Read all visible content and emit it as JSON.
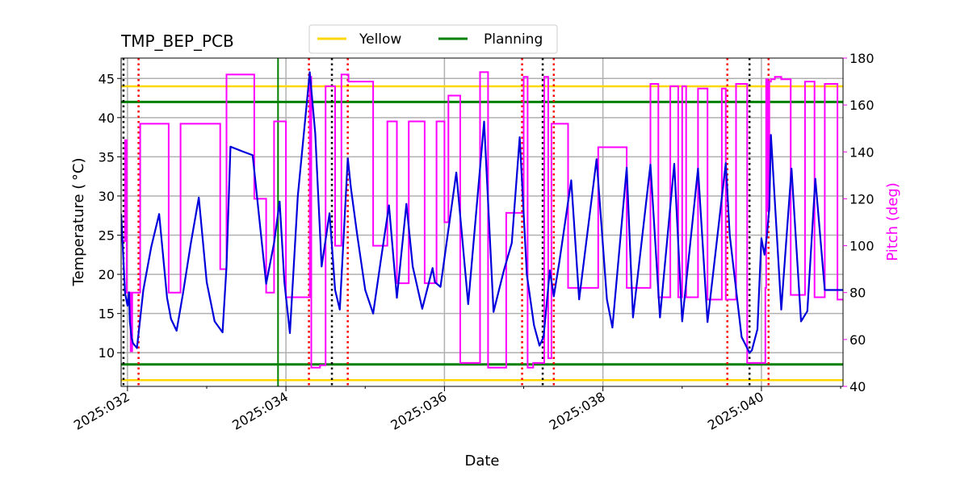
{
  "chart_data": {
    "type": "line",
    "title": "TMP_BEP_PCB",
    "xlabel": "Date",
    "ylabel": "Temperature ($^\\circ$C)",
    "ylabel_display": "Temperature ( °C)",
    "y2label": "Pitch (deg)",
    "xlim": [
      31.92,
      41.03
    ],
    "ylim": [
      5.7,
      47.6
    ],
    "y2lim": [
      40,
      180
    ],
    "x_ticks": [
      {
        "value": 32,
        "label": "2025:032"
      },
      {
        "value": 34,
        "label": "2025:034"
      },
      {
        "value": 36,
        "label": "2025:036"
      },
      {
        "value": 38,
        "label": "2025:038"
      },
      {
        "value": 40,
        "label": "2025:040"
      }
    ],
    "y_ticks": [
      10,
      15,
      20,
      25,
      30,
      35,
      40,
      45
    ],
    "y2_ticks": [
      40,
      60,
      80,
      100,
      120,
      140,
      160,
      180
    ],
    "grid": true,
    "limits": {
      "yellow": {
        "name": "Yellow",
        "values": [
          6.5,
          44.0
        ],
        "color": "#ffd700"
      },
      "planning": {
        "name": "Planning",
        "values": [
          8.5,
          42.0
        ],
        "color": "#008000"
      }
    },
    "planning_vline_x": 33.9,
    "black_dotted_x": [
      31.95,
      34.58,
      37.24,
      39.85
    ],
    "red_dotted_x": [
      32.14,
      34.29,
      34.78,
      36.98,
      37.38,
      39.57,
      40.09
    ],
    "series": [
      {
        "name": "TMP_BEP_PCB",
        "axis": "left",
        "color": "#0000dd",
        "x": [
          31.92,
          31.97,
          32.0,
          32.02,
          32.03,
          32.05,
          32.07,
          32.12,
          32.2,
          32.3,
          32.4,
          32.5,
          32.55,
          32.62,
          32.7,
          32.8,
          32.9,
          33.0,
          33.1,
          33.2,
          33.25,
          33.3,
          33.45,
          33.58,
          33.75,
          33.85,
          33.92,
          33.98,
          34.05,
          34.15,
          34.3,
          34.37,
          34.45,
          34.55,
          34.62,
          34.68,
          34.78,
          34.82,
          34.9,
          35.0,
          35.1,
          35.2,
          35.3,
          35.4,
          35.52,
          35.6,
          35.72,
          35.85,
          35.88,
          35.95,
          36.15,
          36.3,
          36.5,
          36.62,
          36.75,
          36.85,
          36.95,
          37.04,
          37.13,
          37.2,
          37.25,
          37.33,
          37.38,
          37.45,
          37.6,
          37.7,
          37.92,
          38.05,
          38.12,
          38.3,
          38.38,
          38.6,
          38.72,
          38.9,
          39.0,
          39.2,
          39.32,
          39.55,
          39.6,
          39.75,
          39.85,
          39.88,
          39.95,
          40.0,
          40.04,
          40.07,
          40.1,
          40.12,
          40.25,
          40.38,
          40.5,
          40.58,
          40.68,
          40.8,
          40.88,
          40.95,
          41.03
        ],
        "y": [
          27.7,
          17.6,
          16.0,
          17.7,
          14.0,
          12.0,
          11.2,
          10.6,
          18.0,
          23.5,
          27.7,
          17.0,
          14.3,
          12.8,
          17.5,
          24.0,
          29.8,
          19.0,
          14.0,
          12.6,
          21.0,
          36.3,
          35.7,
          35.2,
          18.8,
          24.0,
          29.3,
          19.0,
          12.5,
          30.0,
          45.8,
          38.0,
          21.0,
          27.8,
          18.0,
          15.5,
          34.8,
          31.0,
          25.0,
          18.0,
          15.0,
          22.0,
          28.8,
          17.0,
          29.0,
          21.0,
          15.6,
          20.8,
          19.0,
          18.4,
          33.0,
          16.2,
          39.5,
          15.2,
          20.5,
          24.0,
          37.5,
          20.0,
          13.5,
          10.9,
          12.0,
          20.5,
          17.2,
          21.6,
          32.0,
          16.8,
          34.7,
          16.8,
          13.2,
          33.6,
          14.5,
          34.0,
          14.5,
          34.1,
          14.0,
          33.5,
          13.9,
          34.2,
          25.0,
          12.0,
          10.0,
          10.3,
          13.0,
          24.6,
          22.5,
          25.0,
          28.5,
          37.8,
          15.5,
          33.5,
          14.0,
          15.3,
          32.2,
          18.0,
          18.0,
          18.0,
          18.0
        ]
      },
      {
        "name": "Pitch",
        "axis": "right",
        "color": "#ff00ff",
        "x": [
          31.92,
          31.97,
          31.99,
          32.04,
          32.06,
          32.1,
          32.16,
          32.37,
          32.52,
          32.67,
          32.9,
          33.17,
          33.25,
          33.4,
          33.6,
          33.75,
          33.85,
          34.0,
          34.05,
          34.3,
          34.32,
          34.43,
          34.5,
          34.62,
          34.7,
          34.79,
          35.1,
          35.13,
          35.28,
          35.4,
          35.55,
          35.75,
          35.9,
          36.0,
          36.05,
          36.12,
          36.2,
          36.35,
          36.45,
          36.55,
          36.65,
          36.78,
          37.0,
          37.05,
          37.12,
          37.2,
          37.26,
          37.31,
          37.35,
          37.4,
          37.56,
          37.7,
          37.94,
          38.14,
          38.3,
          38.5,
          38.6,
          38.7,
          38.85,
          38.95,
          39.0,
          39.05,
          39.2,
          39.32,
          39.5,
          39.55,
          39.68,
          39.82,
          39.93,
          40.05,
          40.06,
          40.08,
          40.1,
          40.12,
          40.17,
          40.25,
          40.37,
          40.45,
          40.55,
          40.67,
          40.77,
          40.8,
          40.92,
          40.96,
          41.03
        ],
        "y": [
          102,
          145,
          80,
          55,
          80,
          80,
          152,
          152,
          80,
          152,
          152,
          90,
          173,
          173,
          120,
          80,
          153,
          78,
          78,
          172,
          48,
          49,
          168,
          100,
          173,
          170,
          100,
          100,
          153,
          84,
          153,
          84,
          153,
          110,
          164,
          164,
          50,
          50,
          174,
          48,
          48,
          114,
          172,
          48,
          50,
          50,
          172,
          52,
          152,
          152,
          82,
          82,
          142,
          142,
          82,
          82,
          169,
          78,
          168,
          78,
          168,
          78,
          167,
          77,
          167,
          77,
          169,
          50,
          50,
          82,
          171,
          115,
          170,
          171,
          172,
          171,
          79,
          79,
          170,
          78,
          78,
          169,
          169,
          77,
          77
        ]
      }
    ]
  },
  "legend": {
    "items": [
      {
        "label": "Yellow",
        "color": "#ffd700"
      },
      {
        "label": "Planning",
        "color": "#008000"
      }
    ]
  },
  "colors": {
    "temperature": "#0000dd",
    "pitch": "#ff00ff",
    "pitch_axis": "#ff00ff",
    "grid": "#b0b0b0",
    "black_dotted": "#000000",
    "red_dotted": "#ff0000"
  }
}
